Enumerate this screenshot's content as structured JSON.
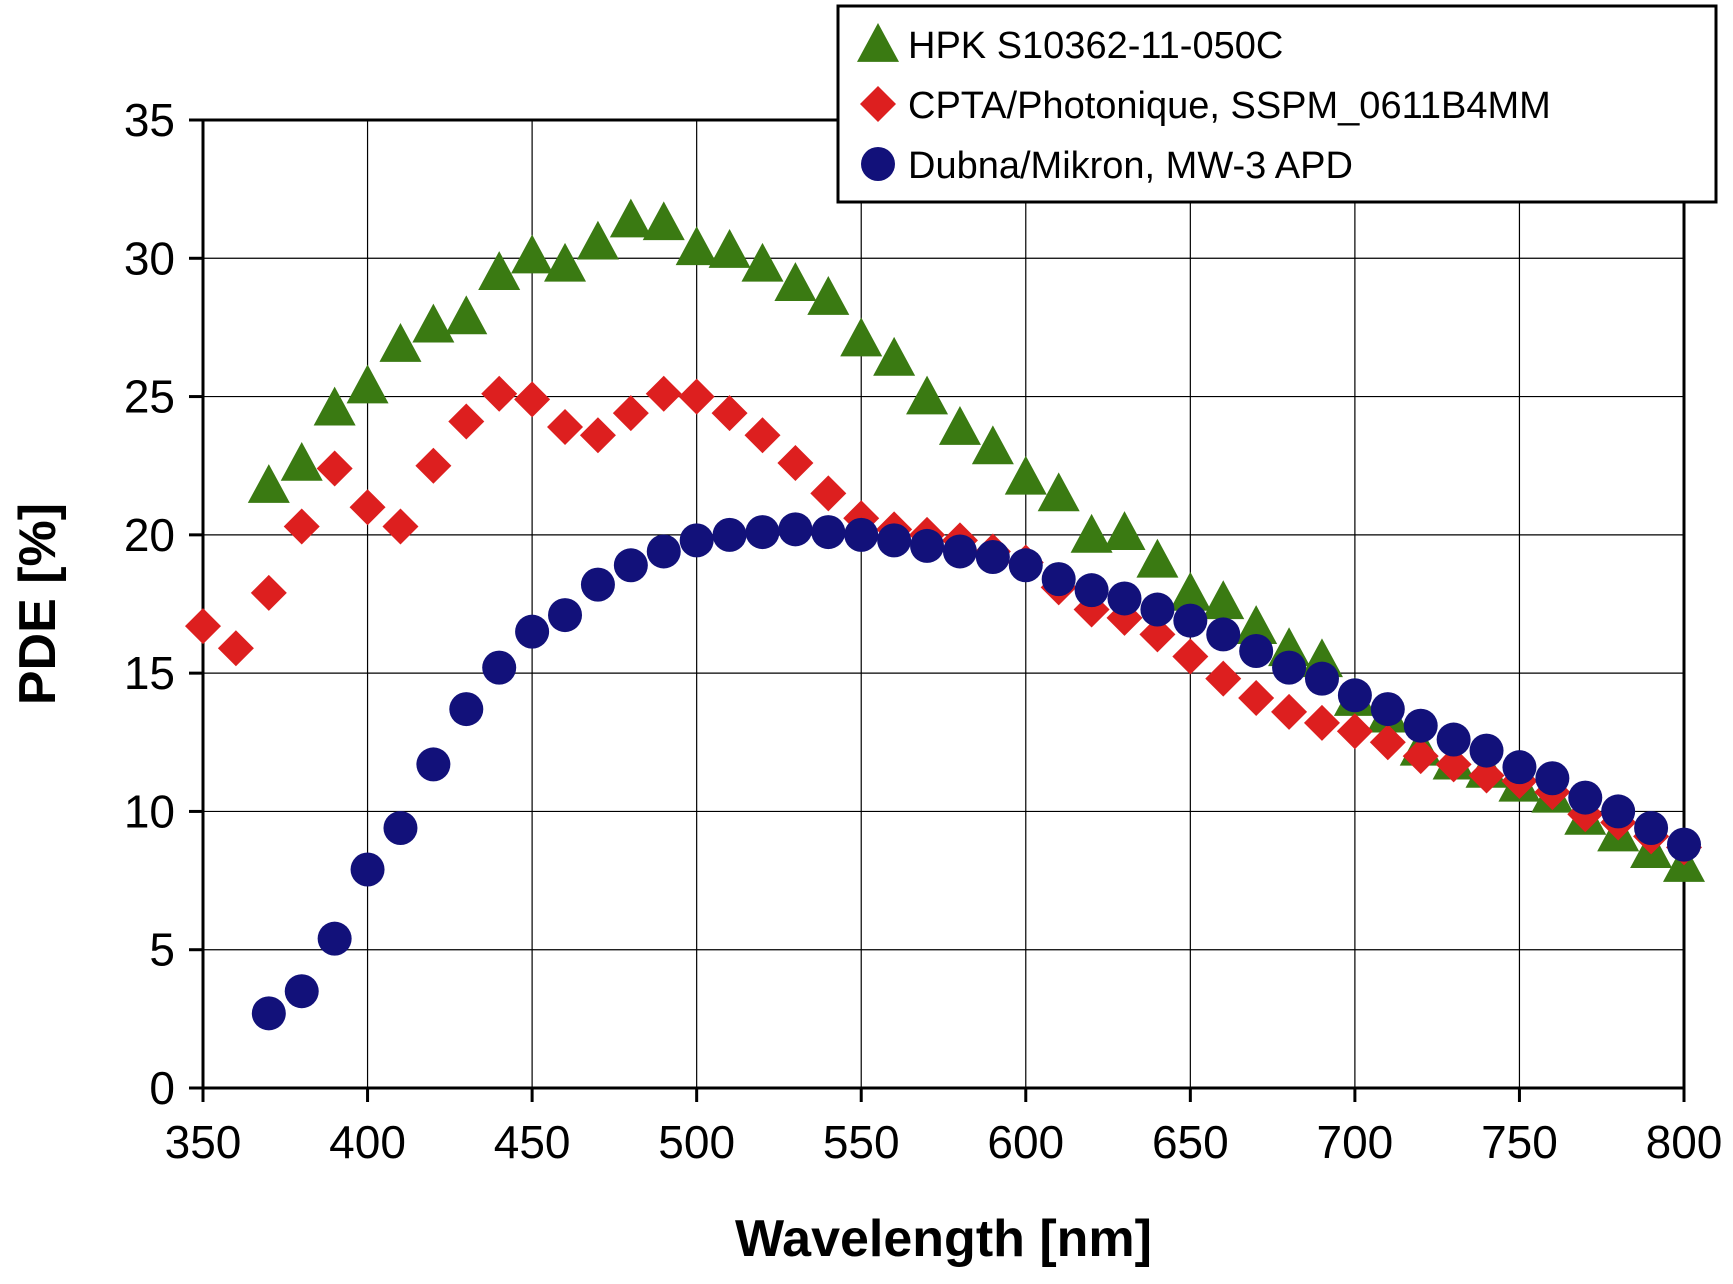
{
  "chart_data": {
    "type": "scatter",
    "title": "",
    "xlabel": "Wavelength [nm]",
    "ylabel": "PDE [%]",
    "xlim": [
      350,
      800
    ],
    "ylim": [
      0,
      35
    ],
    "x_ticks": [
      350,
      400,
      450,
      500,
      550,
      600,
      650,
      700,
      750,
      800
    ],
    "y_ticks": [
      0,
      5,
      10,
      15,
      20,
      25,
      30,
      35
    ],
    "grid": true,
    "legend_position": "top-right",
    "series": [
      {
        "name": "HPK S10362-11-050C",
        "marker": "triangle",
        "color": "#3a7a12",
        "x": [
          370,
          380,
          390,
          400,
          410,
          420,
          430,
          440,
          450,
          460,
          470,
          480,
          490,
          500,
          510,
          520,
          530,
          540,
          550,
          560,
          570,
          580,
          590,
          600,
          610,
          620,
          630,
          640,
          650,
          660,
          670,
          680,
          690,
          700,
          710,
          720,
          730,
          740,
          750,
          760,
          770,
          780,
          790,
          800
        ],
        "y": [
          21.8,
          22.6,
          24.6,
          25.4,
          26.9,
          27.6,
          27.9,
          29.5,
          30.1,
          29.8,
          30.6,
          31.4,
          31.3,
          30.4,
          30.3,
          29.8,
          29.1,
          28.6,
          27.1,
          26.4,
          25.0,
          23.9,
          23.2,
          22.1,
          21.5,
          20.0,
          20.1,
          19.1,
          17.9,
          17.6,
          16.7,
          15.9,
          15.5,
          14.1,
          13.5,
          12.3,
          11.8,
          11.5,
          11.0,
          10.6,
          9.8,
          9.2,
          8.6,
          8.1
        ]
      },
      {
        "name": "CPTA/Photonique, SSPM_0611B4MM",
        "marker": "diamond",
        "color": "#dd1f1f",
        "x": [
          350,
          360,
          370,
          380,
          390,
          400,
          410,
          420,
          430,
          440,
          450,
          460,
          470,
          480,
          490,
          500,
          510,
          520,
          530,
          540,
          550,
          560,
          570,
          580,
          590,
          600,
          610,
          620,
          630,
          640,
          650,
          660,
          670,
          680,
          690,
          700,
          710,
          720,
          730,
          740,
          750,
          760,
          770,
          780,
          790,
          800
        ],
        "y": [
          16.7,
          15.9,
          17.9,
          20.3,
          22.4,
          21.0,
          20.3,
          22.5,
          24.1,
          25.1,
          24.9,
          23.9,
          23.6,
          24.4,
          25.1,
          25.0,
          24.4,
          23.6,
          22.6,
          21.5,
          20.6,
          20.2,
          20.0,
          19.8,
          19.4,
          19.0,
          18.1,
          17.3,
          17.0,
          16.4,
          15.6,
          14.8,
          14.1,
          13.6,
          13.2,
          12.9,
          12.5,
          12.0,
          11.7,
          11.3,
          11.1,
          10.7,
          9.9,
          9.6,
          9.1,
          8.7
        ]
      },
      {
        "name": "Dubna/Mikron, MW-3 APD",
        "marker": "circle",
        "color": "#12117a",
        "x": [
          370,
          380,
          390,
          400,
          410,
          420,
          430,
          440,
          450,
          460,
          470,
          480,
          490,
          500,
          510,
          520,
          530,
          540,
          550,
          560,
          570,
          580,
          590,
          600,
          610,
          620,
          630,
          640,
          650,
          660,
          670,
          680,
          690,
          700,
          710,
          720,
          730,
          740,
          750,
          760,
          770,
          780,
          790,
          800
        ],
        "y": [
          2.7,
          3.5,
          5.4,
          7.9,
          9.4,
          11.7,
          13.7,
          15.2,
          16.5,
          17.1,
          18.2,
          18.9,
          19.4,
          19.8,
          20.0,
          20.1,
          20.2,
          20.1,
          20.0,
          19.8,
          19.6,
          19.4,
          19.2,
          18.9,
          18.4,
          18.0,
          17.7,
          17.3,
          16.9,
          16.4,
          15.8,
          15.2,
          14.8,
          14.2,
          13.7,
          13.1,
          12.6,
          12.2,
          11.6,
          11.2,
          10.5,
          10.0,
          9.4,
          8.8
        ]
      }
    ]
  }
}
